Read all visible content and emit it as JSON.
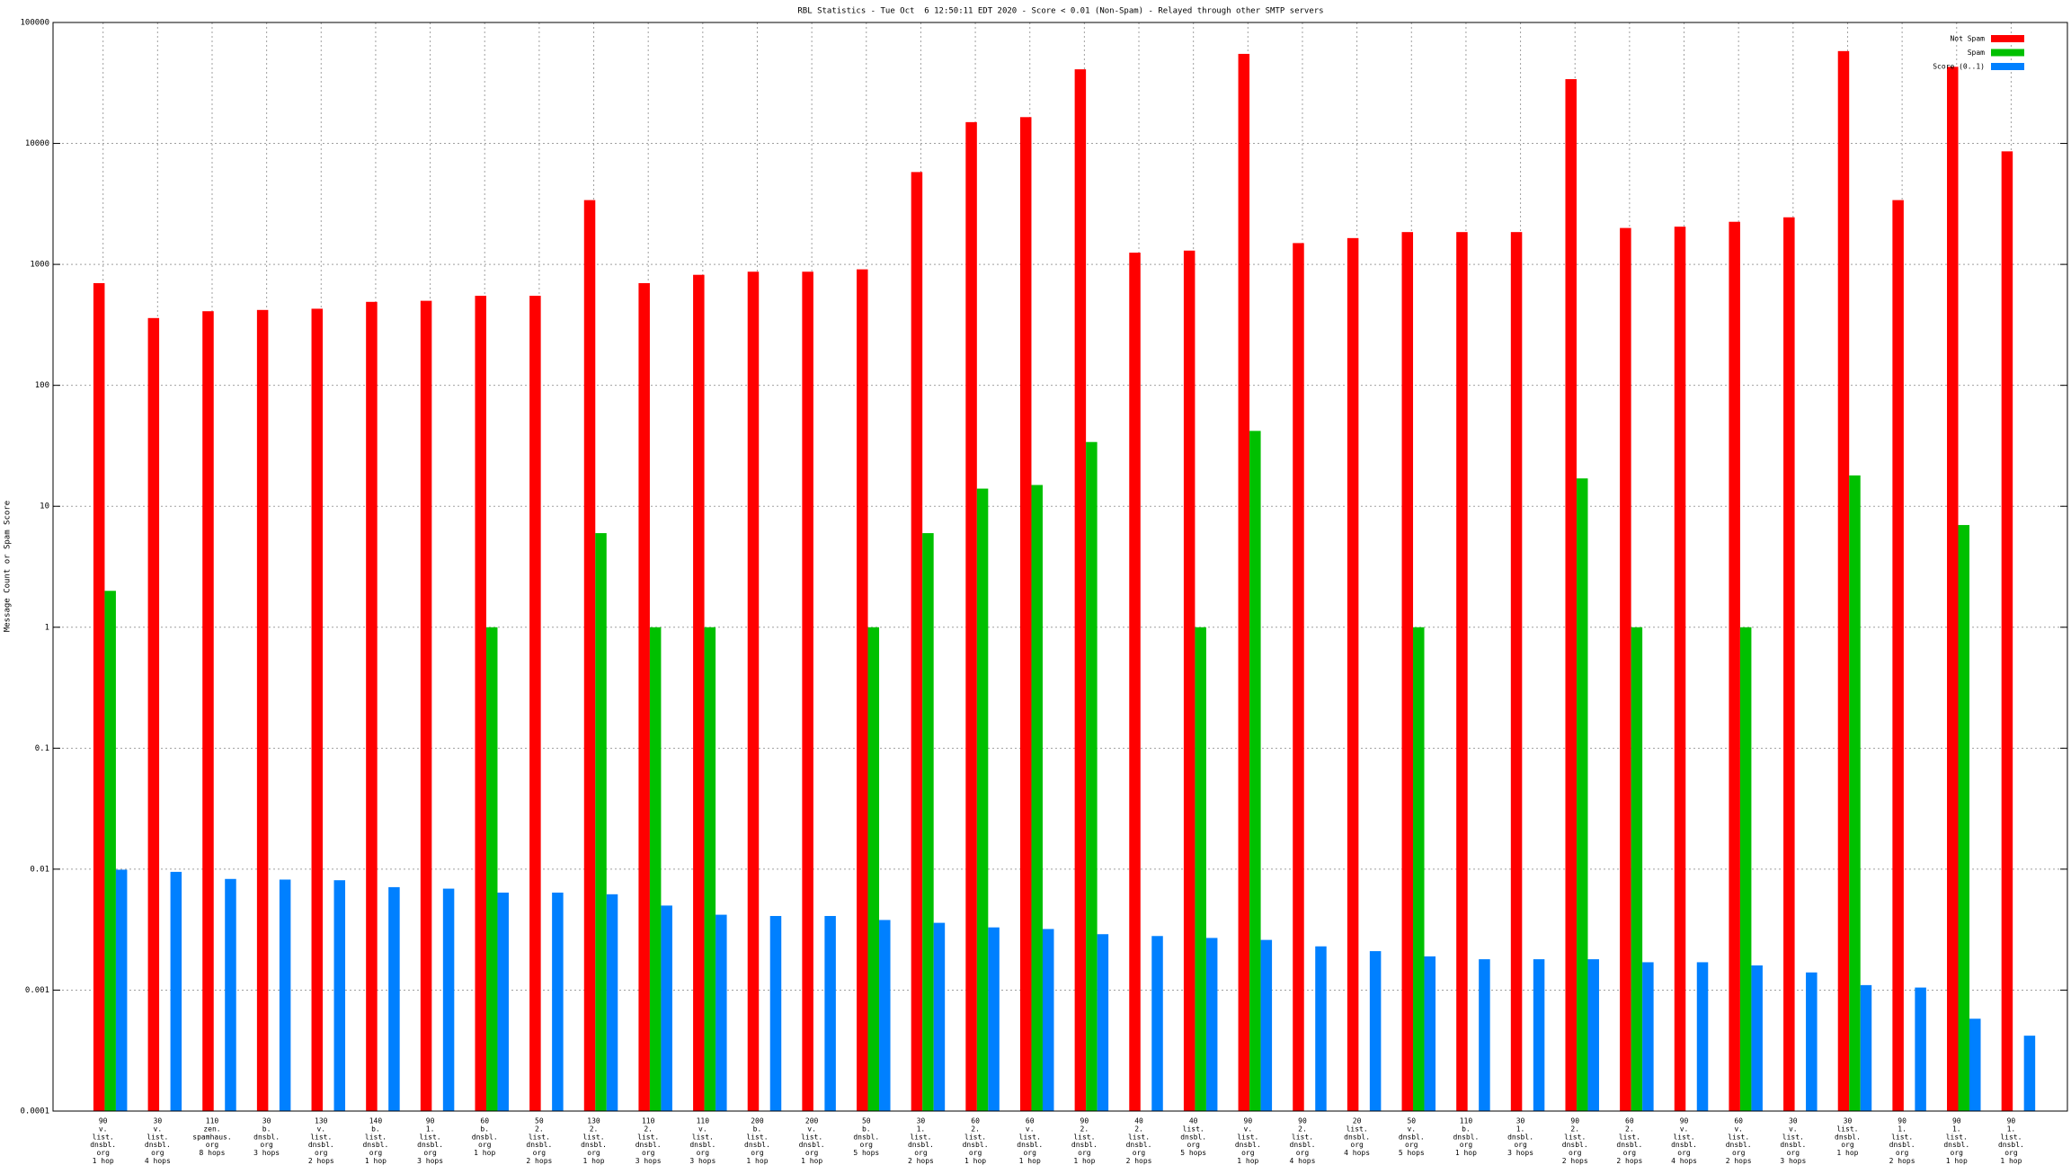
{
  "chart_data": {
    "type": "bar",
    "title": "RBL Statistics - Tue Oct  6 12:50:11 EDT 2020 - Score < 0.01 (Non-Spam) - Relayed through other SMTP servers",
    "y_label": "Message Count or Spam Score",
    "log_scale": true,
    "grid": true,
    "legend": "top-right",
    "ylim": [
      0.0001,
      100000
    ],
    "yticks": [
      0.0001,
      0.001,
      0.01,
      0.1,
      1,
      10,
      100,
      1000,
      10000,
      100000
    ],
    "categories": [
      [
        "90",
        "v.",
        "list.",
        "dnsbl.",
        "org",
        "1 hop"
      ],
      [
        "30",
        "v.",
        "list.",
        "dnsbl.",
        "org",
        "4 hops"
      ],
      [
        "110",
        "zen.",
        "spamhaus.",
        "org",
        "8 hops"
      ],
      [
        "30",
        "b.",
        "dnsbl.",
        "org",
        "3 hops"
      ],
      [
        "130",
        "v.",
        "list.",
        "dnsbl.",
        "org",
        "2 hops"
      ],
      [
        "140",
        "b.",
        "list.",
        "dnsbl.",
        "org",
        "1 hop"
      ],
      [
        "90",
        "1.",
        "list.",
        "dnsbl.",
        "org",
        "3 hops"
      ],
      [
        "60",
        "b.",
        "dnsbl.",
        "org",
        "1 hop"
      ],
      [
        "50",
        "2.",
        "list.",
        "dnsbl.",
        "org",
        "2 hops"
      ],
      [
        "130",
        "2.",
        "list.",
        "dnsbl.",
        "org",
        "1 hop"
      ],
      [
        "110",
        "2.",
        "list.",
        "dnsbl.",
        "org",
        "3 hops"
      ],
      [
        "110",
        "v.",
        "list.",
        "dnsbl.",
        "org",
        "3 hops"
      ],
      [
        "200",
        "b.",
        "list.",
        "dnsbl.",
        "org",
        "1 hop"
      ],
      [
        "200",
        "v.",
        "list.",
        "dnsbl.",
        "org",
        "1 hop"
      ],
      [
        "50",
        "b.",
        "dnsbl.",
        "org",
        "5 hops"
      ],
      [
        "30",
        "1.",
        "list.",
        "dnsbl.",
        "org",
        "2 hops"
      ],
      [
        "60",
        "2.",
        "list.",
        "dnsbl.",
        "org",
        "1 hop"
      ],
      [
        "60",
        "v.",
        "list.",
        "dnsbl.",
        "org",
        "1 hop"
      ],
      [
        "90",
        "2.",
        "list.",
        "dnsbl.",
        "org",
        "1 hop"
      ],
      [
        "40",
        "2.",
        "list.",
        "dnsbl.",
        "org",
        "2 hops"
      ],
      [
        "40",
        "list.",
        "dnsbl.",
        "org",
        "5 hops"
      ],
      [
        "90",
        "v.",
        "list.",
        "dnsbl.",
        "org",
        "1 hop"
      ],
      [
        "90",
        "2.",
        "list.",
        "dnsbl.",
        "org",
        "4 hops"
      ],
      [
        "20",
        "list.",
        "dnsbl.",
        "org",
        "4 hops"
      ],
      [
        "50",
        "v.",
        "dnsbl.",
        "org",
        "5 hops"
      ],
      [
        "110",
        "b.",
        "dnsbl.",
        "org",
        "1 hop"
      ],
      [
        "30",
        "1.",
        "dnsbl.",
        "org",
        "3 hops"
      ],
      [
        "90",
        "2.",
        "list.",
        "dnsbl.",
        "org",
        "2 hops"
      ],
      [
        "60",
        "2.",
        "list.",
        "dnsbl.",
        "org",
        "2 hops"
      ],
      [
        "90",
        "v.",
        "list.",
        "dnsbl.",
        "org",
        "4 hops"
      ],
      [
        "60",
        "v.",
        "list.",
        "dnsbl.",
        "org",
        "2 hops"
      ],
      [
        "30",
        "v.",
        "list.",
        "dnsbl.",
        "org",
        "3 hops"
      ],
      [
        "30",
        "list.",
        "dnsbl.",
        "org",
        "1 hop"
      ],
      [
        "90",
        "1.",
        "list.",
        "dnsbl.",
        "org",
        "2 hops"
      ],
      [
        "90",
        "1.",
        "list.",
        "dnsbl.",
        "org",
        "1 hop"
      ],
      [
        "90",
        "1.",
        "list.",
        "dnsbl.",
        "org",
        "1 hop"
      ]
    ],
    "series": [
      {
        "name": "Not Spam",
        "color": "#ff0000",
        "values": [
          700,
          360,
          410,
          420,
          430,
          490,
          500,
          550,
          550,
          3400,
          700,
          820,
          870,
          870,
          910,
          5800,
          15000,
          16500,
          41000,
          1250,
          1300,
          55000,
          1500,
          1650,
          1850,
          1850,
          1850,
          34000,
          2000,
          2050,
          2250,
          2450,
          58000,
          3400,
          43000,
          8600
        ]
      },
      {
        "name": "Spam",
        "color": "#00c000",
        "values": [
          2,
          null,
          null,
          null,
          null,
          null,
          null,
          1,
          null,
          6,
          1,
          1,
          null,
          null,
          1,
          6,
          14,
          15,
          34,
          null,
          1,
          42,
          null,
          null,
          1,
          null,
          null,
          17,
          1,
          null,
          1,
          null,
          18,
          null,
          7,
          null
        ]
      },
      {
        "name": "Score (0..1)",
        "color": "#0080ff",
        "values": [
          0.0099,
          0.0095,
          0.0083,
          0.0082,
          0.0081,
          0.0071,
          0.0069,
          0.0064,
          0.0064,
          0.0062,
          0.005,
          0.0042,
          0.0041,
          0.0041,
          0.0038,
          0.0036,
          0.0033,
          0.0032,
          0.0029,
          0.0028,
          0.0027,
          0.0026,
          0.0023,
          0.0021,
          0.0019,
          0.0018,
          0.0018,
          0.0018,
          0.0017,
          0.0017,
          0.0016,
          0.0014,
          0.0011,
          0.00105,
          0.00058,
          0.00042
        ]
      }
    ]
  }
}
